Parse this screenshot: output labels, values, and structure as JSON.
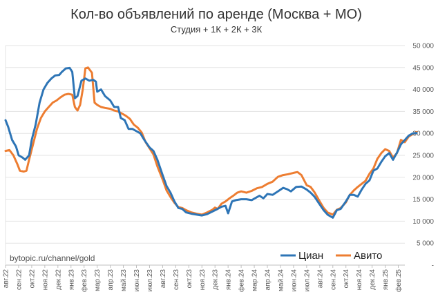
{
  "chart_data": {
    "type": "line",
    "title": "Кол-во объявлений по аренде (Москва + МО)",
    "subtitle": "Студия + 1К + 2К + 3К",
    "watermark": "bytopic.ru/channel/gold",
    "y_axis_position": "right",
    "ylim": [
      0,
      50000
    ],
    "y_ticks": [
      0,
      5000,
      10000,
      15000,
      20000,
      25000,
      30000,
      35000,
      40000,
      45000,
      50000
    ],
    "y_tick_labels": [
      "-",
      "5 000",
      "10 000",
      "15 000",
      "20 000",
      "25 000",
      "30 000",
      "35 000",
      "40 000",
      "45 000",
      "50 000"
    ],
    "x_tick_labels": [
      "авг.22",
      "сен.22",
      "окт.22",
      "ноя.22",
      "дек.22",
      "янв.23",
      "фев.23",
      "мар.23",
      "апр.23",
      "май.23",
      "июн.23",
      "июл.23",
      "авг.23",
      "сен.23",
      "окт.23",
      "ноя.23",
      "дек.23",
      "янв.24",
      "фев.24",
      "мар.24",
      "апр.24",
      "май.24",
      "июн.24",
      "июл.24",
      "авг.24",
      "сен.24",
      "окт.24",
      "ноя.24",
      "дек.24",
      "янв.25",
      "фев.25"
    ],
    "grid": true,
    "legend": "bottom-right",
    "series": [
      {
        "name": "Циан",
        "color": "#2E75B6",
        "points": [
          [
            0,
            33000
          ],
          [
            0.2,
            31500
          ],
          [
            0.5,
            28500
          ],
          [
            0.8,
            27000
          ],
          [
            1.0,
            25000
          ],
          [
            1.3,
            24500
          ],
          [
            1.5,
            24000
          ],
          [
            1.8,
            25000
          ],
          [
            2.0,
            28500
          ],
          [
            2.3,
            32000
          ],
          [
            2.6,
            37000
          ],
          [
            2.9,
            40000
          ],
          [
            3.2,
            41500
          ],
          [
            3.5,
            42500
          ],
          [
            3.8,
            43200
          ],
          [
            4.1,
            43300
          ],
          [
            4.3,
            44000
          ],
          [
            4.6,
            44800
          ],
          [
            4.9,
            44900
          ],
          [
            5.1,
            44000
          ],
          [
            5.3,
            38000
          ],
          [
            5.5,
            38500
          ],
          [
            5.8,
            42000
          ],
          [
            6.1,
            42500
          ],
          [
            6.4,
            42000
          ],
          [
            6.7,
            42200
          ],
          [
            6.9,
            41800
          ],
          [
            7.0,
            39500
          ],
          [
            7.3,
            40000
          ],
          [
            7.6,
            38500
          ],
          [
            8.0,
            37500
          ],
          [
            8.3,
            36000
          ],
          [
            8.6,
            36000
          ],
          [
            8.8,
            33500
          ],
          [
            9.1,
            33000
          ],
          [
            9.4,
            31000
          ],
          [
            9.7,
            31000
          ],
          [
            10.0,
            30500
          ],
          [
            10.3,
            30000
          ],
          [
            10.6,
            28500
          ],
          [
            11.0,
            26800
          ],
          [
            11.3,
            26000
          ],
          [
            11.6,
            24000
          ],
          [
            12.0,
            20500
          ],
          [
            12.3,
            18000
          ],
          [
            12.6,
            16500
          ],
          [
            12.9,
            14500
          ],
          [
            13.2,
            13000
          ],
          [
            13.5,
            12800
          ],
          [
            13.8,
            12000
          ],
          [
            14.2,
            11700
          ],
          [
            14.6,
            11500
          ],
          [
            15.0,
            11300
          ],
          [
            15.4,
            11600
          ],
          [
            15.8,
            12200
          ],
          [
            16.2,
            12800
          ],
          [
            16.5,
            13300
          ],
          [
            16.8,
            13500
          ],
          [
            17.0,
            11800
          ],
          [
            17.3,
            14500
          ],
          [
            17.6,
            14800
          ],
          [
            18.0,
            15000
          ],
          [
            18.4,
            15000
          ],
          [
            18.8,
            14800
          ],
          [
            19.1,
            15300
          ],
          [
            19.4,
            15800
          ],
          [
            19.7,
            15200
          ],
          [
            20.0,
            16200
          ],
          [
            20.4,
            16000
          ],
          [
            20.8,
            16800
          ],
          [
            21.2,
            17600
          ],
          [
            21.5,
            17300
          ],
          [
            21.8,
            16800
          ],
          [
            22.2,
            17800
          ],
          [
            22.6,
            17900
          ],
          [
            23.0,
            17200
          ],
          [
            23.3,
            16500
          ],
          [
            23.6,
            15600
          ],
          [
            24.0,
            13800
          ],
          [
            24.3,
            12500
          ],
          [
            24.6,
            11500
          ],
          [
            25.0,
            10800
          ],
          [
            25.3,
            12500
          ],
          [
            25.6,
            12800
          ],
          [
            26.0,
            14500
          ],
          [
            26.3,
            16000
          ],
          [
            26.6,
            16000
          ],
          [
            26.9,
            15600
          ],
          [
            27.2,
            17200
          ],
          [
            27.5,
            18500
          ],
          [
            27.8,
            19300
          ],
          [
            28.1,
            21500
          ],
          [
            28.4,
            22000
          ],
          [
            28.7,
            23500
          ],
          [
            29.0,
            24800
          ],
          [
            29.3,
            25500
          ],
          [
            29.6,
            24000
          ],
          [
            29.9,
            25600
          ],
          [
            30.2,
            27500
          ],
          [
            30.5,
            28500
          ],
          [
            30.8,
            29500
          ],
          [
            31.1,
            30000
          ],
          [
            31.4,
            30100
          ]
        ]
      },
      {
        "name": "Авито",
        "color": "#ED7D31",
        "points": [
          [
            0,
            26000
          ],
          [
            0.3,
            26200
          ],
          [
            0.6,
            25000
          ],
          [
            0.9,
            23000
          ],
          [
            1.1,
            21500
          ],
          [
            1.4,
            21300
          ],
          [
            1.6,
            21500
          ],
          [
            1.8,
            24000
          ],
          [
            2.1,
            27500
          ],
          [
            2.4,
            31000
          ],
          [
            2.7,
            33500
          ],
          [
            3.0,
            35000
          ],
          [
            3.3,
            36000
          ],
          [
            3.6,
            37000
          ],
          [
            3.9,
            37500
          ],
          [
            4.2,
            38200
          ],
          [
            4.5,
            38800
          ],
          [
            4.8,
            39000
          ],
          [
            5.1,
            38800
          ],
          [
            5.3,
            36000
          ],
          [
            5.5,
            35200
          ],
          [
            5.7,
            36500
          ],
          [
            5.9,
            40000
          ],
          [
            6.1,
            44800
          ],
          [
            6.3,
            45000
          ],
          [
            6.6,
            43800
          ],
          [
            6.8,
            37000
          ],
          [
            7.0,
            36500
          ],
          [
            7.3,
            36000
          ],
          [
            7.6,
            35800
          ],
          [
            8.0,
            35600
          ],
          [
            8.3,
            35200
          ],
          [
            8.6,
            35000
          ],
          [
            8.9,
            34500
          ],
          [
            9.2,
            34000
          ],
          [
            9.5,
            33300
          ],
          [
            9.8,
            32000
          ],
          [
            10.1,
            31300
          ],
          [
            10.4,
            30200
          ],
          [
            10.7,
            28000
          ],
          [
            11.0,
            26600
          ],
          [
            11.3,
            25200
          ],
          [
            11.6,
            22500
          ],
          [
            12.0,
            19500
          ],
          [
            12.3,
            17000
          ],
          [
            12.6,
            15500
          ],
          [
            12.9,
            14200
          ],
          [
            13.2,
            13200
          ],
          [
            13.5,
            13000
          ],
          [
            13.8,
            12500
          ],
          [
            14.2,
            12000
          ],
          [
            14.6,
            11700
          ],
          [
            15.0,
            11500
          ],
          [
            15.4,
            12000
          ],
          [
            15.8,
            12600
          ],
          [
            16.0,
            13100
          ],
          [
            16.2,
            12800
          ],
          [
            16.5,
            14000
          ],
          [
            16.8,
            14500
          ],
          [
            17.1,
            15200
          ],
          [
            17.4,
            15800
          ],
          [
            17.7,
            16500
          ],
          [
            18.0,
            16800
          ],
          [
            18.4,
            16500
          ],
          [
            18.8,
            16900
          ],
          [
            19.2,
            17500
          ],
          [
            19.6,
            17800
          ],
          [
            20.0,
            18500
          ],
          [
            20.4,
            19000
          ],
          [
            20.8,
            20100
          ],
          [
            21.2,
            20500
          ],
          [
            21.6,
            20700
          ],
          [
            22.0,
            21000
          ],
          [
            22.3,
            21200
          ],
          [
            22.6,
            20500
          ],
          [
            23.0,
            18200
          ],
          [
            23.3,
            17800
          ],
          [
            23.6,
            16600
          ],
          [
            24.0,
            14500
          ],
          [
            24.3,
            13000
          ],
          [
            24.6,
            12000
          ],
          [
            25.0,
            11500
          ],
          [
            25.3,
            12600
          ],
          [
            25.6,
            13000
          ],
          [
            26.0,
            14300
          ],
          [
            26.3,
            16000
          ],
          [
            26.6,
            17000
          ],
          [
            26.9,
            17800
          ],
          [
            27.2,
            18500
          ],
          [
            27.5,
            19200
          ],
          [
            27.8,
            20800
          ],
          [
            28.1,
            22000
          ],
          [
            28.4,
            24200
          ],
          [
            28.7,
            25500
          ],
          [
            29.0,
            26400
          ],
          [
            29.3,
            26000
          ],
          [
            29.6,
            24500
          ],
          [
            29.9,
            25500
          ],
          [
            30.2,
            28500
          ],
          [
            30.5,
            28000
          ],
          [
            30.8,
            29300
          ],
          [
            31.1,
            29800
          ],
          [
            31.4,
            30300
          ]
        ]
      }
    ]
  }
}
